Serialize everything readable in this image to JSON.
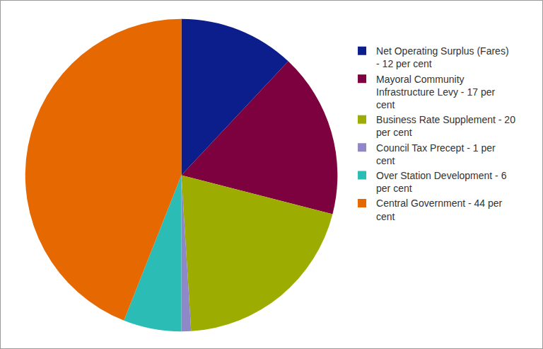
{
  "chart_data": {
    "type": "pie",
    "categories": [
      "Net Operating Surplus (Fares) - 12 per cent",
      "Mayoral Community Infrastructure Levy - 17 per cent",
      "Business Rate Supplement - 20 per cent",
      "Council Tax Precept - 1 per cent",
      "Over Station Development - 6 per cent",
      "Central Government - 44 per cent"
    ],
    "values": [
      12,
      17,
      20,
      1,
      6,
      44
    ],
    "colors": [
      "#0b1e8c",
      "#7d003f",
      "#9cac00",
      "#8f88c8",
      "#2cbcb6",
      "#e66800"
    ],
    "legend": "right"
  }
}
